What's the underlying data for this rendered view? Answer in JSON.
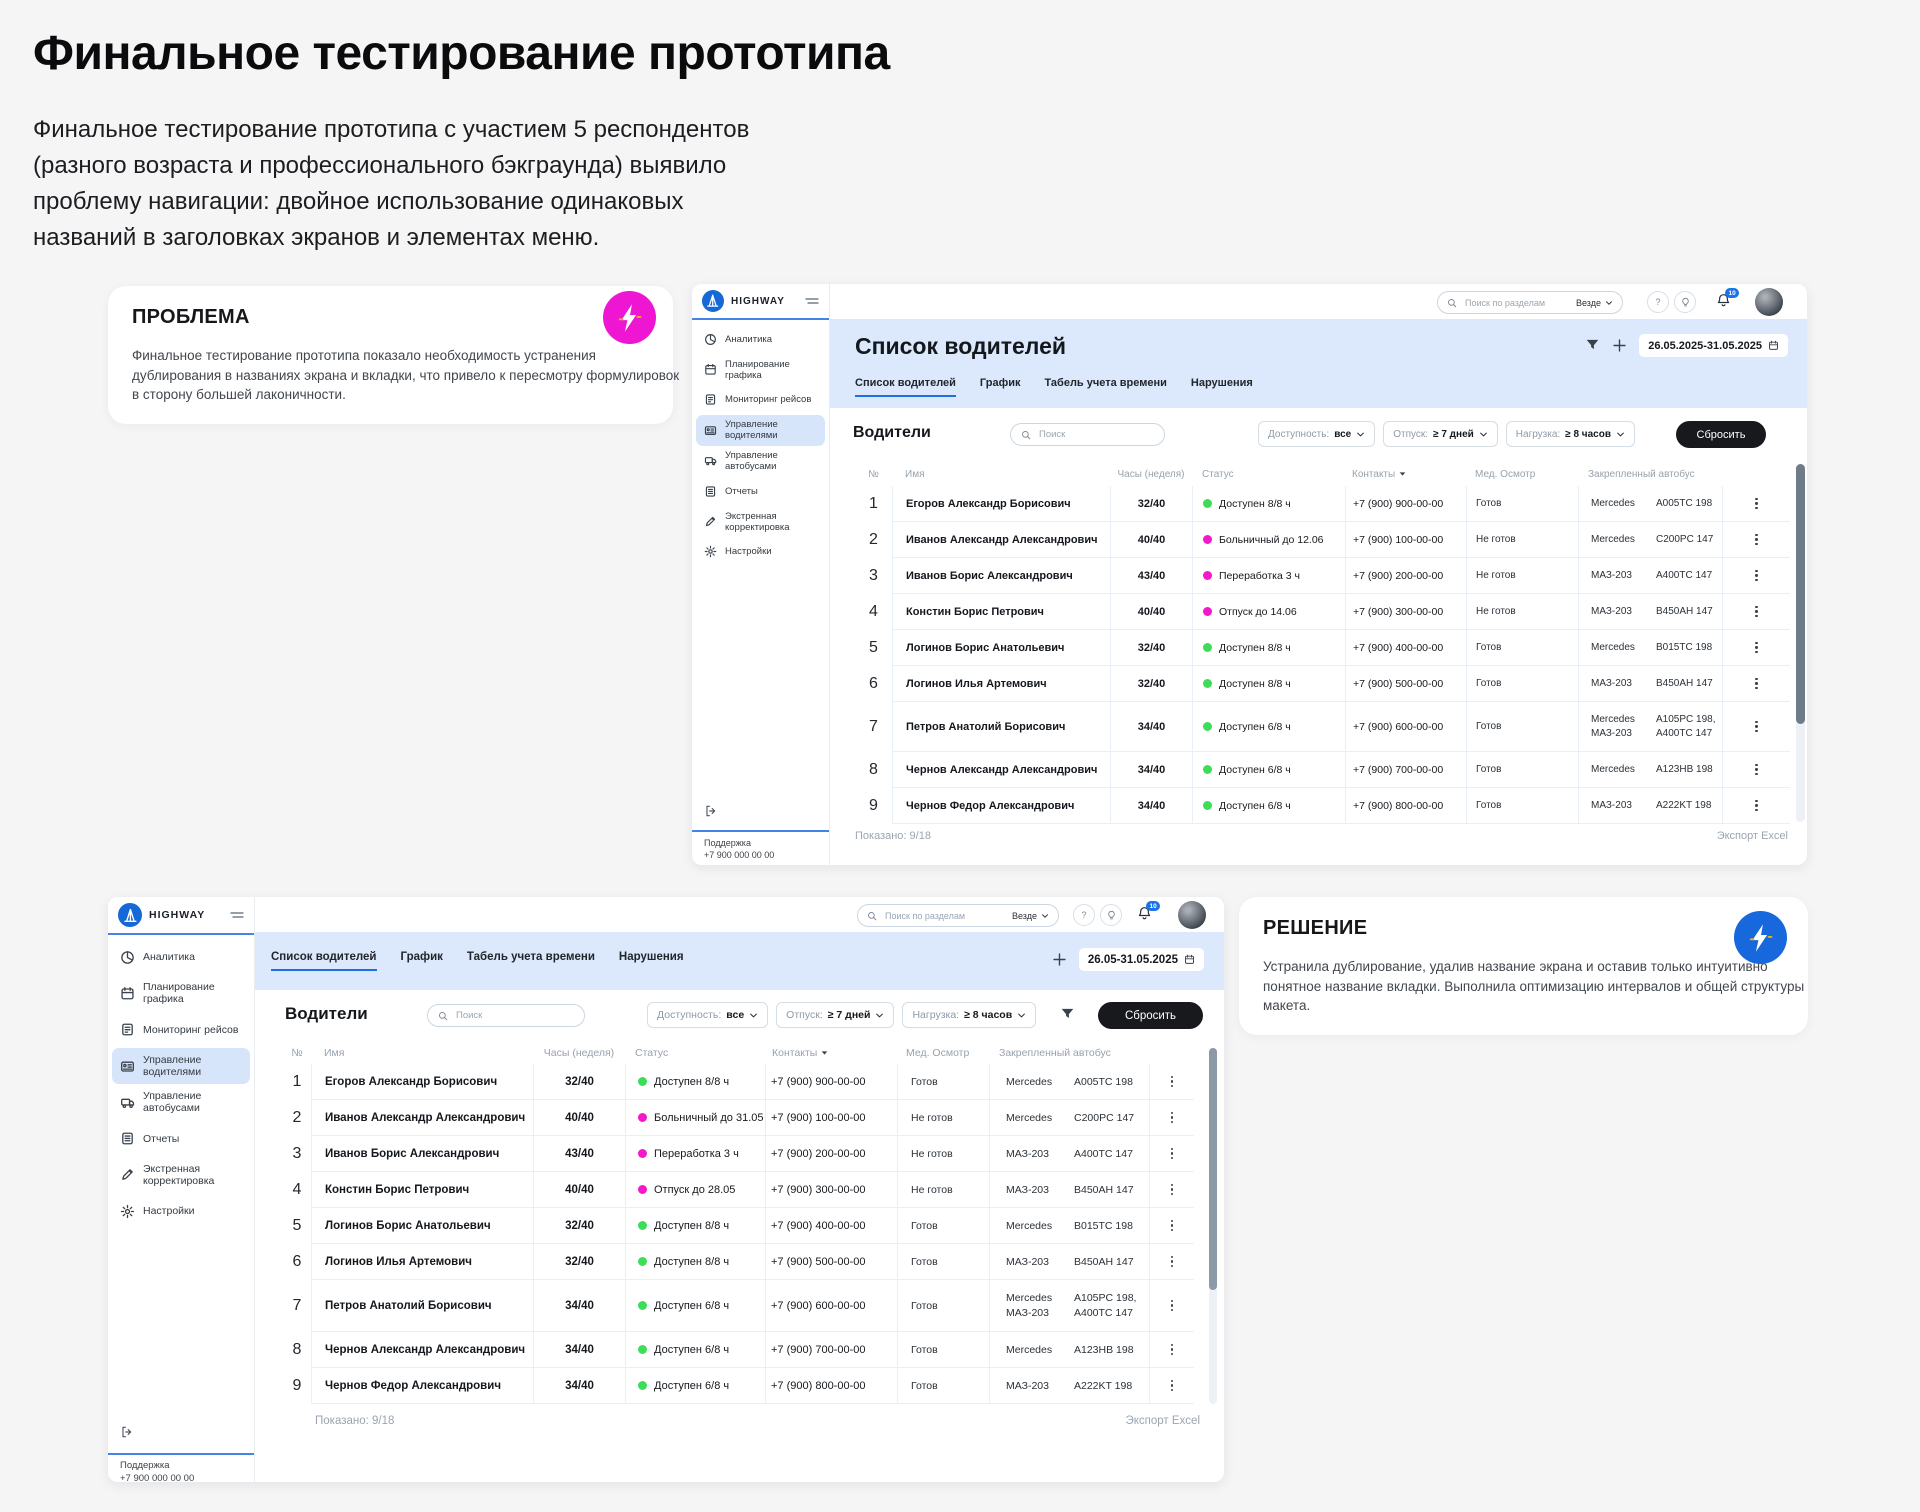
{
  "page": {
    "title": "Финальное тестирование прототипа",
    "intro_lines": [
      "Финальное тестирование прототипа с участием 5 респондентов",
      "(разного возраста и профессионального бэкграунда) выявило",
      "проблему навигации: двойное использование одинаковых",
      "названий в заголовках экранов и элементах меню."
    ]
  },
  "problem_card": {
    "title": "ПРОБЛЕМА",
    "body_lines": [
      "Финальное тестирование прототипа показало необходимость устранения",
      "дублирования в названиях экрана и вкладки, что привело к пересмотру формулировок",
      "в сторону большей лаконичности."
    ],
    "icon": "lightning-icon",
    "icon_bg": "#ef16d3"
  },
  "solution_card": {
    "title": "РЕШЕНИЕ",
    "body_lines": [
      "Устранила дублирование, удалив название экрана и оставив только интуитивно",
      "понятное название вкладки. Выполнила оптимизацию интервалов и общей структуры",
      "макета."
    ],
    "icon": "lightning-icon",
    "icon_bg": "#1668dc"
  },
  "colors": {
    "accent_blue": "#1f6fe0",
    "band_blue": "#dce8fb",
    "status_green": "#3edd58",
    "status_pink": "#f418c8"
  },
  "screen1": {
    "brand": "HIGHWAY",
    "nav_items": [
      {
        "label": "Аналитика",
        "icon": "analytics-icon"
      },
      {
        "label": "Планирование графика",
        "icon": "calendar-icon"
      },
      {
        "label": "Мониторинг рейсов",
        "icon": "monitoring-icon"
      },
      {
        "label": "Управление водителями",
        "icon": "id-card-icon"
      },
      {
        "label": "Управление автобусами",
        "icon": "bus-icon"
      },
      {
        "label": "Отчеты",
        "icon": "reports-icon"
      },
      {
        "label": "Экстренная корректировка",
        "icon": "pencil-icon"
      },
      {
        "label": "Настройки",
        "icon": "gear-icon"
      }
    ],
    "active_nav_index": 3,
    "support_label": "Поддержка",
    "support_phone": "+7 900 000 00 00",
    "topbar": {
      "search_placeholder": "Поиск по разделам",
      "search_scope": "Везде",
      "help_label": "?",
      "bell_badge": "10"
    },
    "page_title": "Список водителей",
    "date_range": "26.05.2025-31.05.2025",
    "tabs": [
      "Список водителей",
      "График",
      "Табель учета времени",
      "Нарушения"
    ],
    "active_tab_index": 0,
    "toolbar": {
      "title": "Водители",
      "search_placeholder": "Поиск",
      "filters": [
        {
          "label": "Доступность:",
          "value": "все"
        },
        {
          "label": "Отпуск:",
          "value": "≥ 7 дней"
        },
        {
          "label": "Нагрузка:",
          "value": "≥ 8 часов"
        }
      ],
      "reset_label": "Сбросить"
    },
    "table": {
      "columns": [
        "№",
        "Имя",
        "Часы (неделя)",
        "Статус",
        "Контакты",
        "Мед. Осмотр",
        "Закрепленный автобус"
      ],
      "rows": [
        {
          "num": "1",
          "name": "Егоров Александр Борисович",
          "hours": "32/40",
          "status": "Доступен 8/8 ч",
          "status_color": "#3edd58",
          "phone": "+7 (900) 900-00-00",
          "med": "Готов",
          "bus_brands": [
            "Mercedes"
          ],
          "bus_plates": [
            "A005TC 198"
          ]
        },
        {
          "num": "2",
          "name": "Иванов Александр Александрович",
          "hours": "40/40",
          "status": "Больничный до 12.06",
          "status_color": "#f418c8",
          "phone": "+7 (900) 100-00-00",
          "med": "Не готов",
          "bus_brands": [
            "Mercedes"
          ],
          "bus_plates": [
            "C200PC 147"
          ]
        },
        {
          "num": "3",
          "name": "Иванов Борис Александрович",
          "hours": "43/40",
          "status": "Переработка 3 ч",
          "status_color": "#f418c8",
          "phone": "+7 (900) 200-00-00",
          "med": "Не готов",
          "bus_brands": [
            "МАЗ-203"
          ],
          "bus_plates": [
            "A400TC 147"
          ]
        },
        {
          "num": "4",
          "name": "Констин Борис Петрович",
          "hours": "40/40",
          "status": "Отпуск до 14.06",
          "status_color": "#f418c8",
          "phone": "+7 (900) 300-00-00",
          "med": "Не готов",
          "bus_brands": [
            "МАЗ-203"
          ],
          "bus_plates": [
            "B450AH 147"
          ]
        },
        {
          "num": "5",
          "name": "Логинов Борис Анатольевич",
          "hours": "32/40",
          "status": "Доступен 8/8 ч",
          "status_color": "#3edd58",
          "phone": "+7 (900) 400-00-00",
          "med": "Готов",
          "bus_brands": [
            "Mercedes"
          ],
          "bus_plates": [
            "B015TC 198"
          ]
        },
        {
          "num": "6",
          "name": "Логинов Илья Артемович",
          "hours": "32/40",
          "status": "Доступен 8/8 ч",
          "status_color": "#3edd58",
          "phone": "+7 (900) 500-00-00",
          "med": "Готов",
          "bus_brands": [
            "МАЗ-203"
          ],
          "bus_plates": [
            "B450AH 147"
          ]
        },
        {
          "num": "7",
          "name": "Петров  Анатолий Борисович",
          "hours": "34/40",
          "status": "Доступен 6/8 ч",
          "status_color": "#3edd58",
          "phone": "+7 (900) 600-00-00",
          "med": "Готов",
          "bus_brands": [
            "Mercedes",
            "МАЗ-203"
          ],
          "bus_plates": [
            "A105PC 198,",
            "A400TC 147"
          ]
        },
        {
          "num": "8",
          "name": "Чернов Александр Александрович",
          "hours": "34/40",
          "status": "Доступен 6/8 ч",
          "status_color": "#3edd58",
          "phone": "+7 (900) 700-00-00",
          "med": "Готов",
          "bus_brands": [
            "Mercedes"
          ],
          "bus_plates": [
            "A123HB 198"
          ]
        },
        {
          "num": "9",
          "name": "Чернов Федор Александрович",
          "hours": "34/40",
          "status": "Доступен 6/8 ч",
          "status_color": "#3edd58",
          "phone": "+7 (900) 800-00-00",
          "med": "Готов",
          "bus_brands": [
            "МАЗ-203"
          ],
          "bus_plates": [
            "A222KT 198"
          ]
        }
      ],
      "shown": "Показано: 9/18",
      "export_label": "Экспорт Excel"
    }
  },
  "screen2": {
    "brand": "HIGHWAY",
    "nav_items": [
      {
        "label": "Аналитика",
        "icon": "analytics-icon"
      },
      {
        "label": "Планирование графика",
        "icon": "calendar-icon"
      },
      {
        "label": "Мониторинг рейсов",
        "icon": "monitoring-icon"
      },
      {
        "label": "Управление водителями",
        "icon": "id-card-icon"
      },
      {
        "label": "Управление автобусами",
        "icon": "bus-icon"
      },
      {
        "label": "Отчеты",
        "icon": "reports-icon"
      },
      {
        "label": "Экстренная корректировка",
        "icon": "pencil-icon"
      },
      {
        "label": "Настройки",
        "icon": "gear-icon"
      }
    ],
    "active_nav_index": 3,
    "support_label": "Поддержка",
    "support_phone": "+7 900 000 00 00",
    "topbar": {
      "search_placeholder": "Поиск по разделам",
      "search_scope": "Везде",
      "help_label": "?",
      "bell_badge": "10"
    },
    "date_range": "26.05-31.05.2025",
    "tabs": [
      "Список водителей",
      "График",
      "Табель учета времени",
      "Нарушения"
    ],
    "active_tab_index": 0,
    "toolbar": {
      "title": "Водители",
      "search_placeholder": "Поиск",
      "filters": [
        {
          "label": "Доступность:",
          "value": "все"
        },
        {
          "label": "Отпуск:",
          "value": "≥ 7 дней"
        },
        {
          "label": "Нагрузка:",
          "value": "≥ 8 часов"
        }
      ],
      "reset_label": "Сбросить"
    },
    "table": {
      "columns": [
        "№",
        "Имя",
        "Часы (неделя)",
        "Статус",
        "Контакты",
        "Мед. Осмотр",
        "Закрепленный автобус"
      ],
      "rows": [
        {
          "num": "1",
          "name": "Егоров Александр Борисович",
          "hours": "32/40",
          "status": "Доступен 8/8 ч",
          "status_color": "#3edd58",
          "phone": "+7 (900) 900-00-00",
          "med": "Готов",
          "bus_brands": [
            "Mercedes"
          ],
          "bus_plates": [
            "A005TC 198"
          ]
        },
        {
          "num": "2",
          "name": "Иванов Александр Александрович",
          "hours": "40/40",
          "status": "Больничный до 31.05",
          "status_color": "#f418c8",
          "phone": "+7 (900) 100-00-00",
          "med": "Не готов",
          "bus_brands": [
            "Mercedes"
          ],
          "bus_plates": [
            "C200PC 147"
          ]
        },
        {
          "num": "3",
          "name": "Иванов Борис Александрович",
          "hours": "43/40",
          "status": "Переработка 3 ч",
          "status_color": "#f418c8",
          "phone": "+7 (900) 200-00-00",
          "med": "Не готов",
          "bus_brands": [
            "МАЗ-203"
          ],
          "bus_plates": [
            "A400TC 147"
          ]
        },
        {
          "num": "4",
          "name": "Констин Борис Петрович",
          "hours": "40/40",
          "status": "Отпуск до 28.05",
          "status_color": "#f418c8",
          "phone": "+7 (900) 300-00-00",
          "med": "Не готов",
          "bus_brands": [
            "МАЗ-203"
          ],
          "bus_plates": [
            "B450AH 147"
          ]
        },
        {
          "num": "5",
          "name": "Логинов Борис Анатольевич",
          "hours": "32/40",
          "status": "Доступен 8/8 ч",
          "status_color": "#3edd58",
          "phone": "+7 (900) 400-00-00",
          "med": "Готов",
          "bus_brands": [
            "Mercedes"
          ],
          "bus_plates": [
            "B015TC 198"
          ]
        },
        {
          "num": "6",
          "name": "Логинов Илья Артемович",
          "hours": "32/40",
          "status": "Доступен 8/8 ч",
          "status_color": "#3edd58",
          "phone": "+7 (900) 500-00-00",
          "med": "Готов",
          "bus_brands": [
            "МАЗ-203"
          ],
          "bus_plates": [
            "B450AH 147"
          ]
        },
        {
          "num": "7",
          "name": "Петров  Анатолий Борисович",
          "hours": "34/40",
          "status": "Доступен 6/8 ч",
          "status_color": "#3edd58",
          "phone": "+7 (900) 600-00-00",
          "med": "Готов",
          "bus_brands": [
            "Mercedes",
            "МАЗ-203"
          ],
          "bus_plates": [
            "A105PC 198,",
            "A400TC 147"
          ]
        },
        {
          "num": "8",
          "name": "Чернов Александр Александрович",
          "hours": "34/40",
          "status": "Доступен 6/8 ч",
          "status_color": "#3edd58",
          "phone": "+7 (900) 700-00-00",
          "med": "Готов",
          "bus_brands": [
            "Mercedes"
          ],
          "bus_plates": [
            "A123HB 198"
          ]
        },
        {
          "num": "9",
          "name": "Чернов Федор Александрович",
          "hours": "34/40",
          "status": "Доступен 6/8 ч",
          "status_color": "#3edd58",
          "phone": "+7 (900) 800-00-00",
          "med": "Готов",
          "bus_brands": [
            "МАЗ-203"
          ],
          "bus_plates": [
            "A222KT 198"
          ]
        }
      ],
      "shown": "Показано: 9/18",
      "export_label": "Экспорт Excel"
    }
  }
}
